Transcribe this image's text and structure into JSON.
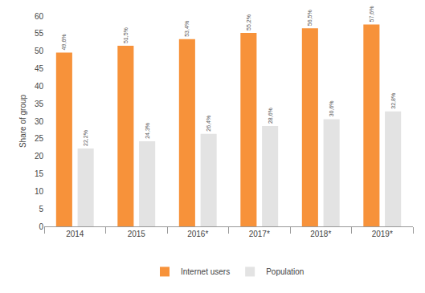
{
  "chart_data": {
    "type": "bar",
    "y_label": "Share of group",
    "categories": [
      "2014",
      "2015",
      "2016*",
      "2017*",
      "2018*",
      "2019*"
    ],
    "series": [
      {
        "name": "Internet users",
        "color": "#f7923a",
        "values": [
          49.6,
          51.5,
          53.4,
          55.2,
          56.5,
          57.6
        ],
        "value_labels": [
          "49,6%",
          "51,5%",
          "53,4%",
          "55,2%",
          "56,5%",
          "57,6%"
        ]
      },
      {
        "name": "Population",
        "color": "#e3e3e3",
        "values": [
          22.2,
          24.3,
          26.4,
          28.6,
          30.6,
          32.8
        ],
        "value_labels": [
          "22,2%",
          "24,3%",
          "26,4%",
          "28,6%",
          "30,6%",
          "32,8%"
        ]
      }
    ],
    "ylim": [
      0,
      60
    ],
    "yticks": [
      0,
      5,
      10,
      15,
      20,
      25,
      30,
      35,
      40,
      45,
      50,
      55,
      60
    ],
    "grid": false,
    "legend": "bottom",
    "data_labels": true
  }
}
